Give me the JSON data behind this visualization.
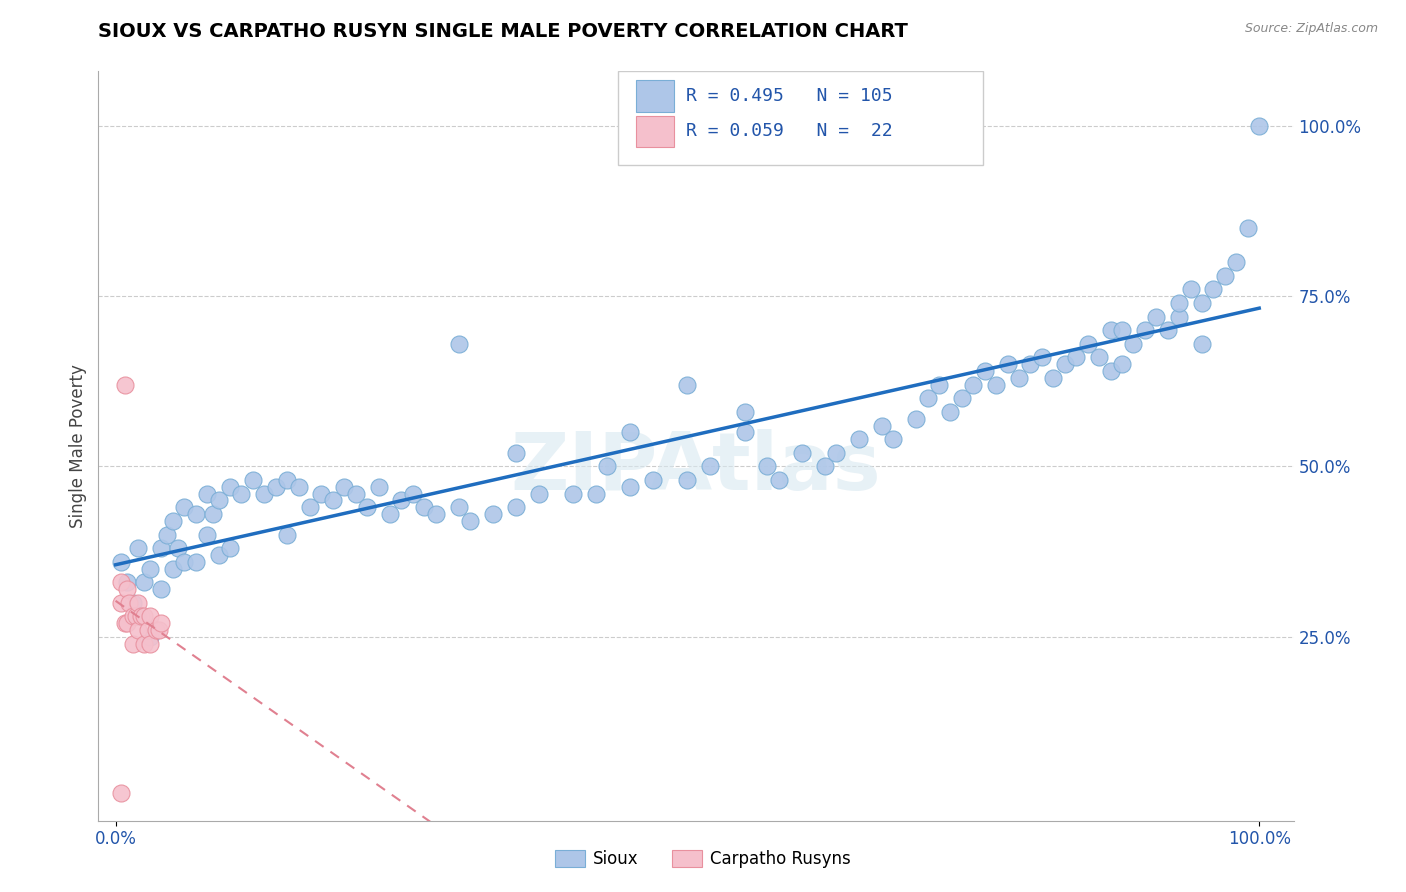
{
  "title": "SIOUX VS CARPATHO RUSYN SINGLE MALE POVERTY CORRELATION CHART",
  "source": "Source: ZipAtlas.com",
  "ylabel": "Single Male Poverty",
  "r_sioux": 0.495,
  "n_sioux": 105,
  "r_carpatho": 0.059,
  "n_carpatho": 22,
  "sioux_color": "#aec6e8",
  "sioux_edge_color": "#7aaed6",
  "carpatho_color": "#f5c0cc",
  "carpatho_edge_color": "#e8909e",
  "sioux_line_color": "#1f6dbf",
  "carpatho_line_color": "#e08090",
  "legend_label_sioux": "Sioux",
  "legend_label_carpatho": "Carpatho Rusyns",
  "watermark": "ZIPAtlas",
  "legend_r1": "R = 0.495",
  "legend_n1": "N = 105",
  "legend_r2": "R = 0.059",
  "legend_n2": "N =  22",
  "xtick_labels": [
    "0.0%",
    "100.0%"
  ],
  "xtick_pos": [
    0.0,
    1.0
  ],
  "ytick_labels": [
    "100.0%",
    "75.0%",
    "50.0%",
    "25.0%"
  ],
  "ytick_pos": [
    1.0,
    0.75,
    0.5,
    0.25
  ],
  "sioux_x": [
    0.005,
    0.01,
    0.015,
    0.02,
    0.02,
    0.025,
    0.03,
    0.03,
    0.04,
    0.04,
    0.045,
    0.05,
    0.05,
    0.055,
    0.06,
    0.06,
    0.07,
    0.07,
    0.08,
    0.08,
    0.085,
    0.09,
    0.09,
    0.1,
    0.1,
    0.11,
    0.12,
    0.13,
    0.14,
    0.15,
    0.15,
    0.16,
    0.17,
    0.18,
    0.19,
    0.2,
    0.21,
    0.22,
    0.23,
    0.24,
    0.25,
    0.26,
    0.27,
    0.28,
    0.3,
    0.31,
    0.33,
    0.35,
    0.37,
    0.4,
    0.42,
    0.43,
    0.45,
    0.47,
    0.5,
    0.52,
    0.55,
    0.57,
    0.58,
    0.6,
    0.62,
    0.63,
    0.65,
    0.67,
    0.68,
    0.7,
    0.71,
    0.72,
    0.73,
    0.74,
    0.75,
    0.76,
    0.77,
    0.78,
    0.79,
    0.8,
    0.81,
    0.82,
    0.83,
    0.84,
    0.85,
    0.86,
    0.87,
    0.87,
    0.88,
    0.88,
    0.89,
    0.9,
    0.91,
    0.92,
    0.93,
    0.93,
    0.94,
    0.95,
    0.95,
    0.96,
    0.97,
    0.98,
    0.99,
    1.0,
    0.3,
    0.5,
    0.45,
    0.35,
    0.55
  ],
  "sioux_y": [
    0.36,
    0.33,
    0.3,
    0.38,
    0.28,
    0.33,
    0.35,
    0.25,
    0.38,
    0.32,
    0.4,
    0.42,
    0.35,
    0.38,
    0.44,
    0.36,
    0.43,
    0.36,
    0.46,
    0.4,
    0.43,
    0.45,
    0.37,
    0.47,
    0.38,
    0.46,
    0.48,
    0.46,
    0.47,
    0.48,
    0.4,
    0.47,
    0.44,
    0.46,
    0.45,
    0.47,
    0.46,
    0.44,
    0.47,
    0.43,
    0.45,
    0.46,
    0.44,
    0.43,
    0.44,
    0.42,
    0.43,
    0.44,
    0.46,
    0.46,
    0.46,
    0.5,
    0.47,
    0.48,
    0.48,
    0.5,
    0.55,
    0.5,
    0.48,
    0.52,
    0.5,
    0.52,
    0.54,
    0.56,
    0.54,
    0.57,
    0.6,
    0.62,
    0.58,
    0.6,
    0.62,
    0.64,
    0.62,
    0.65,
    0.63,
    0.65,
    0.66,
    0.63,
    0.65,
    0.66,
    0.68,
    0.66,
    0.7,
    0.64,
    0.7,
    0.65,
    0.68,
    0.7,
    0.72,
    0.7,
    0.72,
    0.74,
    0.76,
    0.74,
    0.68,
    0.76,
    0.78,
    0.8,
    0.85,
    1.0,
    0.68,
    0.62,
    0.55,
    0.52,
    0.58
  ],
  "carpatho_x": [
    0.005,
    0.005,
    0.008,
    0.01,
    0.01,
    0.012,
    0.015,
    0.015,
    0.018,
    0.02,
    0.02,
    0.022,
    0.025,
    0.025,
    0.028,
    0.03,
    0.03,
    0.035,
    0.038,
    0.04,
    0.005,
    0.008
  ],
  "carpatho_y": [
    0.3,
    0.33,
    0.27,
    0.32,
    0.27,
    0.3,
    0.28,
    0.24,
    0.28,
    0.3,
    0.26,
    0.28,
    0.28,
    0.24,
    0.26,
    0.28,
    0.24,
    0.26,
    0.26,
    0.27,
    0.02,
    0.62
  ]
}
